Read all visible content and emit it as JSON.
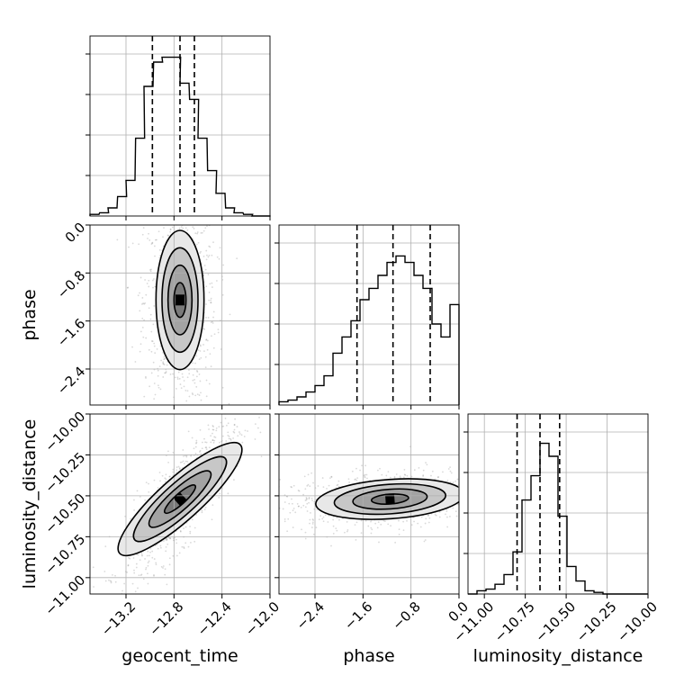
{
  "chart_data": {
    "type": "corner",
    "parameters": [
      "geocent_time",
      "phase",
      "luminosity_distance"
    ],
    "axis_labels": {
      "x": [
        "geocent_time",
        "phase",
        "luminosity_distance"
      ],
      "y": [
        "phase",
        "luminosity_distance"
      ]
    },
    "ranges": [
      [
        -13.5,
        -12.0
      ],
      [
        -3.0,
        0.0
      ],
      [
        -11.1,
        -10.0
      ]
    ],
    "ticks": [
      {
        "values": [
          -13.2,
          -12.8,
          -12.4,
          -12.0
        ],
        "labels": [
          "−13.2",
          "−12.8",
          "−12.4",
          "−12.0"
        ]
      },
      {
        "values": [
          -2.4,
          -1.6,
          -0.8,
          0.0
        ],
        "labels": [
          "−2.4",
          "−1.6",
          "−0.8",
          "0.0"
        ]
      },
      {
        "values": [
          -11.0,
          -10.75,
          -10.5,
          -10.25,
          -10.0
        ],
        "labels": [
          "−11.00",
          "−10.75",
          "−10.50",
          "−10.25",
          "−10.00"
        ]
      }
    ],
    "quantiles": [
      [
        -12.98,
        -12.75,
        -12.63
      ],
      [
        -1.7,
        -1.1,
        -0.48
      ],
      [
        -10.8,
        -10.66,
        -10.54
      ]
    ],
    "histograms": [
      {
        "bins": [
          -13.5,
          -13.42,
          -13.35,
          -13.27,
          -13.2,
          -13.12,
          -13.05,
          -12.97,
          -12.9,
          -12.82,
          -12.75,
          -12.67,
          -12.6,
          -12.52,
          -12.45,
          -12.37,
          -12.3,
          -12.22,
          -12.15,
          -12.07
        ],
        "counts": [
          0.01,
          0.02,
          0.05,
          0.12,
          0.22,
          0.48,
          0.8,
          0.95,
          0.98,
          0.98,
          0.82,
          0.72,
          0.48,
          0.28,
          0.14,
          0.05,
          0.02,
          0.01,
          0.0,
          0.0
        ]
      },
      {
        "bins": [
          -3.0,
          -2.85,
          -2.7,
          -2.55,
          -2.4,
          -2.25,
          -2.1,
          -1.95,
          -1.8,
          -1.65,
          -1.5,
          -1.35,
          -1.2,
          -1.05,
          -0.9,
          -0.75,
          -0.6,
          -0.45,
          -0.3,
          -0.15
        ],
        "counts": [
          0.02,
          0.03,
          0.05,
          0.08,
          0.12,
          0.18,
          0.32,
          0.42,
          0.52,
          0.65,
          0.72,
          0.8,
          0.88,
          0.92,
          0.88,
          0.8,
          0.72,
          0.5,
          0.42,
          0.62
        ]
      },
      {
        "bins": [
          -11.1,
          -11.045,
          -10.99,
          -10.935,
          -10.88,
          -10.825,
          -10.77,
          -10.715,
          -10.66,
          -10.605,
          -10.55,
          -10.495,
          -10.44,
          -10.385,
          -10.33,
          -10.275,
          -10.22,
          -10.165,
          -10.11,
          -10.055
        ],
        "counts": [
          0.0,
          0.02,
          0.03,
          0.06,
          0.12,
          0.26,
          0.58,
          0.73,
          0.93,
          0.85,
          0.48,
          0.17,
          0.08,
          0.02,
          0.01,
          0.0,
          0.0,
          0.0,
          0.0,
          0.0
        ]
      }
    ],
    "kde_2d": [
      {
        "x_param": "geocent_time",
        "y_param": "phase",
        "center": [
          -12.75,
          -1.25
        ],
        "sx": 0.1,
        "sy": 0.58,
        "rho": 0.0
      },
      {
        "x_param": "geocent_time",
        "y_param": "luminosity_distance",
        "center": [
          -12.75,
          -10.52
        ],
        "sx": 0.16,
        "sy": 0.16,
        "rho": 0.82
      },
      {
        "x_param": "phase",
        "y_param": "luminosity_distance",
        "center": [
          -1.15,
          -10.52
        ],
        "sx": 0.62,
        "sy": 0.06,
        "rho": 0.25
      }
    ],
    "grid": true
  }
}
